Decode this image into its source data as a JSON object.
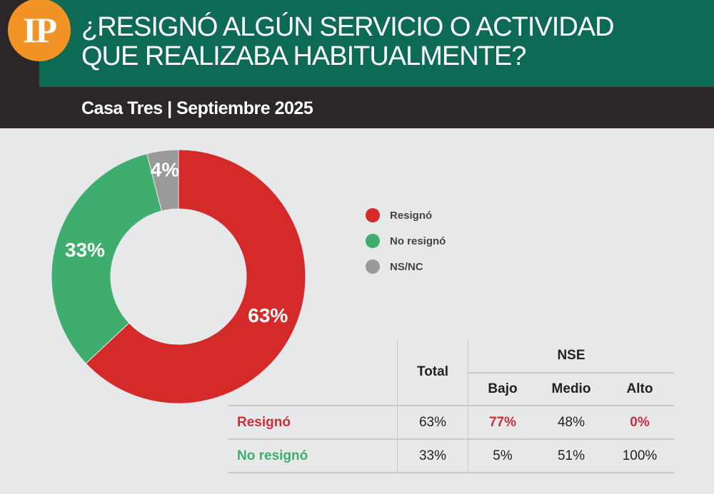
{
  "header": {
    "logo": "IP",
    "title_line1": "¿RESIGNÓ ALGÚN SERVICIO O ACTIVIDAD",
    "title_line2": "QUE REALIZABA HABITUALMENTE?",
    "subtitle": "Casa Tres | Septiembre 2025"
  },
  "chart_data": {
    "type": "pie",
    "donut": true,
    "title": "¿RESIGNÓ ALGÚN SERVICIO O ACTIVIDAD QUE REALIZABA HABITUALMENTE?",
    "slices": [
      {
        "label": "Resignó",
        "value": 63,
        "display": "63%",
        "color": "#d42a2a"
      },
      {
        "label": "No resignó",
        "value": 33,
        "display": "33%",
        "color": "#3fad6e"
      },
      {
        "label": "NS/NC",
        "value": 4,
        "display": "4%",
        "color": "#9a9a9a"
      }
    ],
    "legend_position": "right"
  },
  "table": {
    "total_header": "Total",
    "group_header": "NSE",
    "sub_headers": [
      "Bajo",
      "Medio",
      "Alto"
    ],
    "rows": [
      {
        "label": "Resignó",
        "values": [
          "63%",
          "77%",
          "48%",
          "0%"
        ],
        "color": "#c8303a"
      },
      {
        "label": "No resignó",
        "values": [
          "33%",
          "5%",
          "51%",
          "100%"
        ],
        "color": "#3fad6e"
      }
    ]
  }
}
